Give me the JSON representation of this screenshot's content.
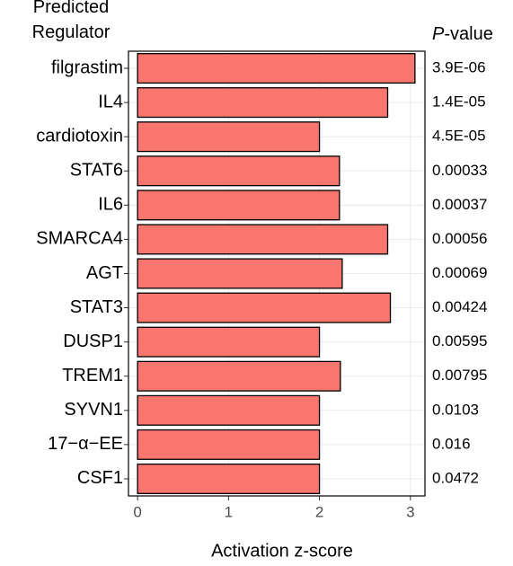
{
  "chart_data": {
    "type": "hbar",
    "y_label": "Predicted Regulator",
    "x_label": "Activation z-score",
    "pvalue_header": "P-value",
    "categories": [
      "filgrastim",
      "IL4",
      "cardiotoxin",
      "STAT6",
      "IL6",
      "SMARCA4",
      "AGT",
      "STAT3",
      "DUSP1",
      "TREM1",
      "SYVN1",
      "17−α−EE",
      "CSF1"
    ],
    "values": [
      3.05,
      2.75,
      2.0,
      2.22,
      2.22,
      2.75,
      2.25,
      2.78,
      2.0,
      2.23,
      2.0,
      2.0,
      2.0
    ],
    "p_values": [
      "3.9E-06",
      "1.4E-05",
      "4.5E-05",
      "0.00033",
      "0.00037",
      "0.00056",
      "0.00069",
      "0.00424",
      "0.00595",
      "0.00795",
      "0.0103",
      "0.016",
      "0.0472"
    ],
    "color": "#F8766D",
    "xlim": [
      -0.1,
      3.16
    ],
    "xticks": [
      0,
      1,
      2,
      3
    ],
    "grid": true
  }
}
